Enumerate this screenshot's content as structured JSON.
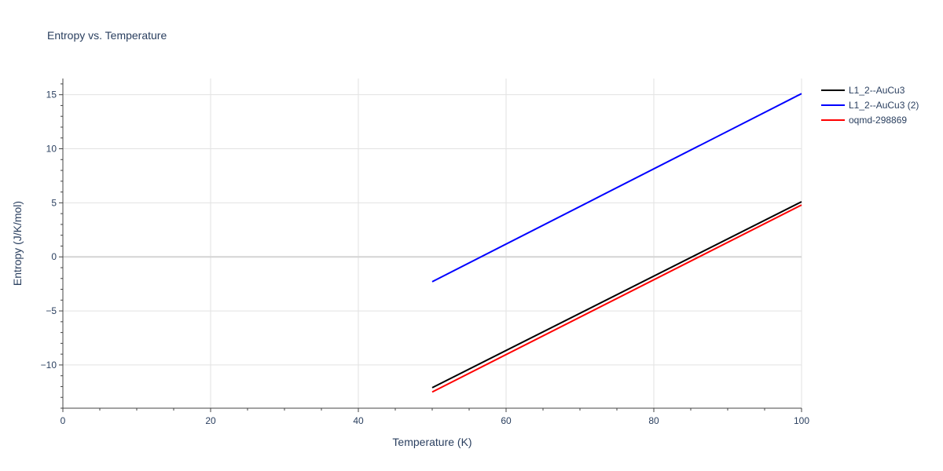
{
  "chart_data": {
    "type": "line",
    "title": "Entropy vs. Temperature",
    "xlabel": "Temperature (K)",
    "ylabel": "Entropy (J/K/mol)",
    "xlim": [
      0,
      100
    ],
    "ylim": [
      -14,
      16.5
    ],
    "x_ticks": [
      0,
      20,
      40,
      60,
      80,
      100
    ],
    "x_tick_labels": [
      "0",
      "20",
      "40",
      "60",
      "80",
      "100"
    ],
    "y_ticks": [
      -10,
      -5,
      0,
      5,
      10,
      15
    ],
    "y_tick_labels": [
      "−10",
      "−5",
      "0",
      "5",
      "10",
      "15"
    ],
    "grid": true,
    "legend_position": "top-right",
    "series": [
      {
        "name": "L1_2--AuCu3",
        "color": "#000000",
        "x": [
          50,
          100
        ],
        "y": [
          -12.1,
          5.1
        ]
      },
      {
        "name": "L1_2--AuCu3 (2)",
        "color": "#0000ff",
        "x": [
          50,
          100
        ],
        "y": [
          -2.3,
          15.1
        ]
      },
      {
        "name": "oqmd-298869",
        "color": "#ff0000",
        "x": [
          50,
          100
        ],
        "y": [
          -12.5,
          4.8
        ]
      }
    ]
  }
}
